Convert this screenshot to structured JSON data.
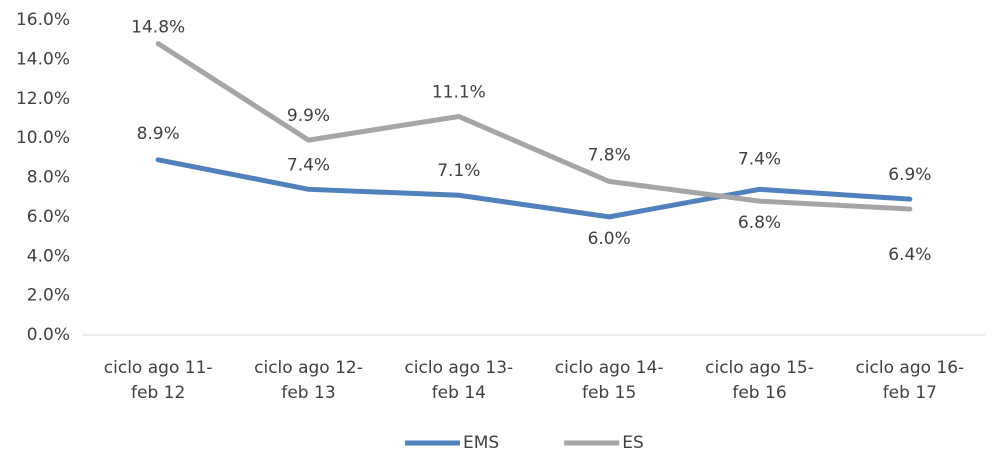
{
  "chart_data": {
    "type": "line",
    "categories": [
      "ciclo ago 11-feb 12",
      "ciclo ago 12-feb 13",
      "ciclo ago 13-feb 14",
      "ciclo ago 14-feb 15",
      "ciclo ago 15-feb 16",
      "ciclo ago 16-feb 17"
    ],
    "series": [
      {
        "name": "EMS",
        "color": "#4f81bd",
        "values": [
          8.9,
          7.4,
          7.1,
          6.0,
          7.4,
          6.9
        ],
        "value_labels": [
          "8.9%",
          "7.4%",
          "7.1%",
          "6.0%",
          "7.4%",
          "6.9%"
        ]
      },
      {
        "name": "ES",
        "color": "#a5a5a5",
        "values": [
          14.8,
          9.9,
          11.1,
          7.8,
          6.8,
          6.4
        ],
        "value_labels": [
          "14.8%",
          "9.9%",
          "11.1%",
          "7.8%",
          "6.8%",
          "6.4%"
        ]
      }
    ],
    "ylim": [
      0,
      16
    ],
    "yticks": [
      {
        "value": 0,
        "label": "0.0%"
      },
      {
        "value": 2,
        "label": "2.0%"
      },
      {
        "value": 4,
        "label": "4.0%"
      },
      {
        "value": 6,
        "label": "6.0%"
      },
      {
        "value": 8,
        "label": "8.0%"
      },
      {
        "value": 10,
        "label": "10.0%"
      },
      {
        "value": 12,
        "label": "12.0%"
      },
      {
        "value": 14,
        "label": "14.0%"
      },
      {
        "value": 16,
        "label": "16.0%"
      }
    ],
    "grid": false,
    "legend": "bottom"
  }
}
